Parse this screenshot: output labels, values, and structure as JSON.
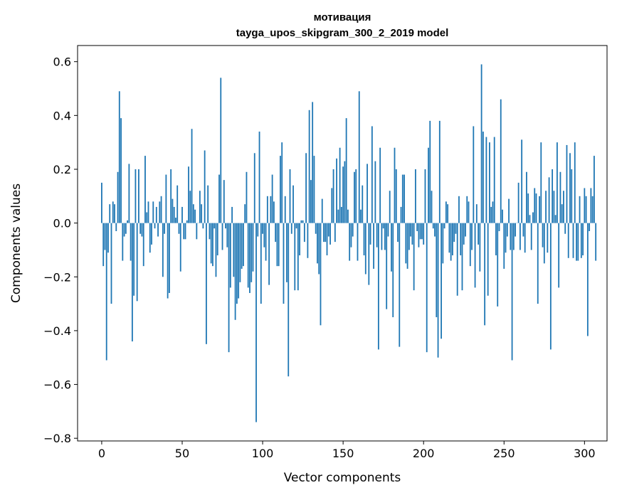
{
  "chart_data": {
    "type": "bar",
    "title": "мотивация",
    "subtitle": "tayga_upos_skipgram_300_2_2019 model",
    "xlabel": "Vector components",
    "ylabel": "Components values",
    "xlim": [
      -15,
      314
    ],
    "ylim": [
      -0.81,
      0.66
    ],
    "xticks": [
      0,
      50,
      100,
      150,
      200,
      250,
      300
    ],
    "yticks": [
      -0.8,
      -0.6,
      -0.4,
      -0.2,
      0.0,
      0.2,
      0.4,
      0.6
    ],
    "ytick_labels": [
      "−0.8",
      "−0.6",
      "−0.4",
      "−0.2",
      "0.0",
      "0.2",
      "0.4",
      "0.6"
    ],
    "grid": false,
    "bar_color": "#1f77b4",
    "x_start": 0,
    "values": [
      0.15,
      -0.16,
      -0.1,
      -0.51,
      -0.11,
      0.07,
      -0.3,
      0.08,
      0.07,
      -0.03,
      0.19,
      0.49,
      0.39,
      -0.14,
      -0.05,
      -0.04,
      0.01,
      0.22,
      -0.14,
      -0.44,
      -0.27,
      0.2,
      -0.29,
      0.2,
      -0.04,
      -0.05,
      -0.16,
      0.25,
      0.04,
      0.08,
      -0.11,
      -0.08,
      0.08,
      -0.02,
      0.06,
      -0.05,
      0.08,
      0.1,
      -0.2,
      -0.04,
      0.18,
      -0.28,
      -0.26,
      0.2,
      0.09,
      0.06,
      0.02,
      0.14,
      -0.04,
      -0.18,
      0.06,
      -0.06,
      -0.06,
      0.01,
      0.21,
      0.12,
      0.35,
      0.07,
      0.05,
      -0.06,
      0.0,
      0.12,
      0.07,
      -0.02,
      0.27,
      -0.45,
      0.14,
      -0.06,
      -0.15,
      -0.16,
      -0.02,
      -0.2,
      -0.12,
      0.18,
      0.54,
      -0.1,
      0.16,
      -0.02,
      -0.09,
      -0.48,
      -0.24,
      0.06,
      -0.2,
      -0.36,
      -0.3,
      -0.28,
      -0.22,
      -0.17,
      -0.16,
      0.07,
      0.19,
      -0.24,
      -0.26,
      -0.22,
      -0.18,
      0.26,
      -0.74,
      -0.05,
      0.34,
      -0.3,
      -0.04,
      -0.09,
      -0.14,
      0.1,
      -0.23,
      0.1,
      0.18,
      0.08,
      -0.07,
      -0.16,
      -0.16,
      0.25,
      0.3,
      -0.3,
      0.1,
      -0.22,
      -0.57,
      0.2,
      -0.04,
      0.14,
      -0.25,
      -0.02,
      -0.25,
      -0.12,
      0.01,
      0.01,
      -0.07,
      0.26,
      -0.13,
      0.42,
      0.16,
      0.45,
      0.25,
      -0.04,
      -0.15,
      -0.19,
      -0.38,
      0.09,
      -0.07,
      -0.07,
      -0.12,
      -0.05,
      -0.08,
      0.13,
      0.2,
      -0.07,
      0.24,
      0.05,
      0.28,
      0.06,
      0.21,
      0.23,
      0.39,
      0.05,
      -0.14,
      -0.09,
      -0.05,
      0.19,
      0.2,
      -0.14,
      0.49,
      0.05,
      0.14,
      -0.12,
      -0.19,
      0.22,
      -0.23,
      -0.08,
      0.36,
      -0.17,
      0.23,
      -0.09,
      -0.47,
      0.28,
      -0.1,
      -0.02,
      -0.1,
      -0.32,
      -0.05,
      0.12,
      -0.18,
      -0.35,
      0.28,
      0.2,
      -0.07,
      -0.46,
      0.06,
      0.18,
      0.18,
      -0.15,
      -0.17,
      -0.1,
      -0.05,
      -0.08,
      -0.25,
      0.2,
      -0.03,
      -0.09,
      -0.06,
      -0.06,
      -0.08,
      0.2,
      -0.48,
      0.28,
      0.38,
      0.12,
      -0.02,
      -0.05,
      -0.35,
      -0.5,
      0.38,
      -0.43,
      -0.15,
      -0.02,
      0.08,
      0.07,
      -0.11,
      -0.14,
      -0.12,
      -0.07,
      -0.04,
      -0.27,
      0.1,
      -0.12,
      -0.25,
      -0.08,
      -0.05,
      0.1,
      0.08,
      -0.16,
      -0.1,
      0.36,
      -0.24,
      0.07,
      -0.08,
      -0.18,
      0.59,
      0.34,
      -0.38,
      0.32,
      -0.27,
      0.3,
      0.06,
      0.08,
      0.32,
      -0.12,
      -0.31,
      -0.03,
      0.46,
      0.05,
      -0.17,
      -0.11,
      -0.05,
      0.09,
      -0.1,
      -0.51,
      -0.1,
      -0.05,
      0.0,
      0.15,
      -0.1,
      0.31,
      -0.05,
      -0.11,
      0.19,
      0.11,
      0.03,
      -0.1,
      0.04,
      0.13,
      0.11,
      -0.3,
      0.1,
      0.3,
      -0.09,
      -0.15,
      0.12,
      -0.11,
      0.17,
      -0.47,
      0.2,
      0.12,
      0.03,
      0.3,
      -0.24,
      0.19,
      0.07,
      0.12,
      -0.04,
      0.29,
      -0.13,
      0.26,
      0.2,
      -0.13,
      0.3,
      -0.14,
      -0.14,
      0.1,
      -0.13,
      -0.12,
      0.13,
      0.1,
      -0.42,
      -0.03,
      0.13,
      0.1,
      0.25,
      -0.14
    ]
  }
}
